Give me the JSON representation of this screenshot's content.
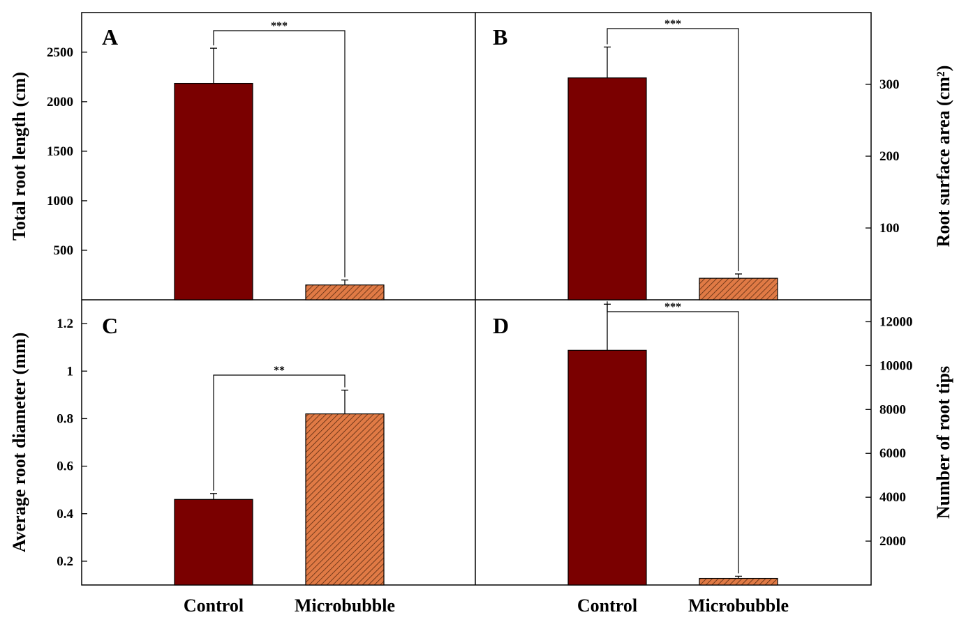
{
  "colors": {
    "control": "#7a0000",
    "microbubble": "#e07a45",
    "hatch": "#5a2a10"
  },
  "chart_data": [
    {
      "panel": "A",
      "type": "bar",
      "categories": [
        "Control",
        "Microbubble"
      ],
      "values": [
        2185,
        150
      ],
      "errors": [
        355,
        50
      ],
      "ylabel": "Total root length (cm)",
      "ylim": [
        0,
        2900
      ],
      "yticks": [
        500,
        1000,
        1500,
        2000,
        2500
      ],
      "significance": "***"
    },
    {
      "panel": "B",
      "type": "bar",
      "categories": [
        "Control",
        "Microbubble"
      ],
      "values": [
        309,
        30
      ],
      "errors": [
        43,
        6
      ],
      "ylabel": "Root surface area (cm²)",
      "ylim": [
        0,
        400
      ],
      "yticks": [
        100,
        200,
        300
      ],
      "significance": "***"
    },
    {
      "panel": "C",
      "type": "bar",
      "categories": [
        "Control",
        "Microbubble"
      ],
      "values": [
        0.46,
        0.82
      ],
      "errors": [
        0.025,
        0.1
      ],
      "ylabel": "Average root diameter (mm)",
      "ylim": [
        0.1,
        1.3
      ],
      "yticks": [
        0.2,
        0.4,
        0.6,
        0.8,
        1.0,
        1.2
      ],
      "significance": "**"
    },
    {
      "panel": "D",
      "type": "bar",
      "categories": [
        "Control",
        "Microbubble"
      ],
      "values": [
        10700,
        300
      ],
      "errors": [
        2100,
        100
      ],
      "ylabel": "Number of root tips",
      "ylim": [
        0,
        13000
      ],
      "yticks": [
        2000,
        4000,
        6000,
        8000,
        10000,
        12000
      ],
      "significance": "***"
    }
  ]
}
